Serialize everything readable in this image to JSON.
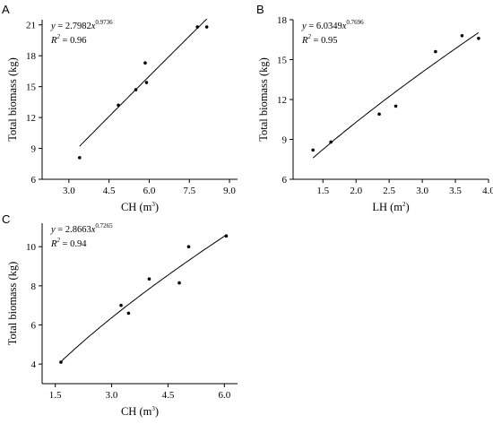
{
  "chart_data": [
    {
      "panel": "A",
      "type": "scatter",
      "xlabel": "CH (m",
      "xlabel_sup": "3",
      "xlabel_suffix": ")",
      "ylabel": "Total biomass (kg)",
      "xlim": [
        2.0,
        9.3
      ],
      "ylim": [
        6.0,
        21.5
      ],
      "xticks": [
        3.0,
        4.5,
        6.0,
        7.5,
        9.0
      ],
      "xtick_labels": [
        "3.0",
        "4.5",
        "6.0",
        "7.5",
        "9.0"
      ],
      "yticks": [
        6,
        9,
        12,
        15,
        18,
        21
      ],
      "ytick_labels": [
        "6",
        "9",
        "12",
        "15",
        "18",
        "21"
      ],
      "points": [
        {
          "x": 3.4,
          "y": 8.1
        },
        {
          "x": 4.85,
          "y": 13.2
        },
        {
          "x": 5.5,
          "y": 14.7
        },
        {
          "x": 5.85,
          "y": 17.3
        },
        {
          "x": 5.9,
          "y": 15.4
        },
        {
          "x": 7.8,
          "y": 20.8
        },
        {
          "x": 8.15,
          "y": 20.8
        }
      ],
      "fit": {
        "a": 2.7982,
        "b": 0.9736,
        "x_range": [
          3.4,
          8.15
        ]
      },
      "equation": {
        "lhs": "y",
        "eq": " = 2.7982",
        "var": "x",
        "exp": "0.9736"
      },
      "r2": {
        "label": "R",
        "sup": "2",
        "value": " = 0.96"
      }
    },
    {
      "panel": "B",
      "type": "scatter",
      "xlabel": "LH (m",
      "xlabel_sup": "2",
      "xlabel_suffix": ")",
      "ylabel": "Total biomass (kg)",
      "xlim": [
        1.05,
        4.0
      ],
      "ylim": [
        6.0,
        18.0
      ],
      "xticks": [
        1.5,
        2.0,
        2.5,
        3.0,
        3.5,
        4.0
      ],
      "xtick_labels": [
        "1.5",
        "2.0",
        "2.5",
        "3.0",
        "3.5",
        "4.0"
      ],
      "yticks": [
        6,
        9,
        12,
        15,
        18
      ],
      "ytick_labels": [
        "6",
        "9",
        "12",
        "15",
        "18"
      ],
      "points": [
        {
          "x": 1.35,
          "y": 8.2
        },
        {
          "x": 1.62,
          "y": 8.8
        },
        {
          "x": 2.35,
          "y": 10.9
        },
        {
          "x": 2.6,
          "y": 11.5
        },
        {
          "x": 3.2,
          "y": 15.6
        },
        {
          "x": 3.6,
          "y": 16.8
        },
        {
          "x": 3.85,
          "y": 16.6
        }
      ],
      "fit": {
        "a": 6.0349,
        "b": 0.7696,
        "x_range": [
          1.35,
          3.85
        ]
      },
      "equation": {
        "lhs": "y",
        "eq": " = 6.0349",
        "var": "x",
        "exp": "0.7696"
      },
      "r2": {
        "label": "R",
        "sup": "2",
        "value": " = 0.95"
      }
    },
    {
      "panel": "C",
      "type": "scatter",
      "xlabel": "CH (m",
      "xlabel_sup": "3",
      "xlabel_suffix": ")",
      "ylabel": "Total biomass (kg)",
      "xlim": [
        1.15,
        6.35
      ],
      "ylim": [
        3.0,
        11.2
      ],
      "xticks": [
        1.5,
        3.0,
        4.5,
        6.0
      ],
      "xtick_labels": [
        "1.5",
        "3.0",
        "4.5",
        "6.0"
      ],
      "yticks": [
        4,
        6,
        8,
        10
      ],
      "ytick_labels": [
        "4",
        "6",
        "8",
        "10"
      ],
      "points": [
        {
          "x": 1.65,
          "y": 4.1
        },
        {
          "x": 3.25,
          "y": 7.0
        },
        {
          "x": 3.45,
          "y": 6.6
        },
        {
          "x": 4.0,
          "y": 8.35
        },
        {
          "x": 4.8,
          "y": 8.15
        },
        {
          "x": 5.05,
          "y": 10.0
        },
        {
          "x": 6.05,
          "y": 10.55
        }
      ],
      "fit": {
        "a": 2.8663,
        "b": 0.7265,
        "x_range": [
          1.65,
          6.05
        ]
      },
      "equation": {
        "lhs": "y",
        "eq": " = 2.8663",
        "var": "x",
        "exp": "0.7265"
      },
      "r2": {
        "label": "R",
        "sup": "2",
        "value": " = 0.94"
      }
    }
  ]
}
